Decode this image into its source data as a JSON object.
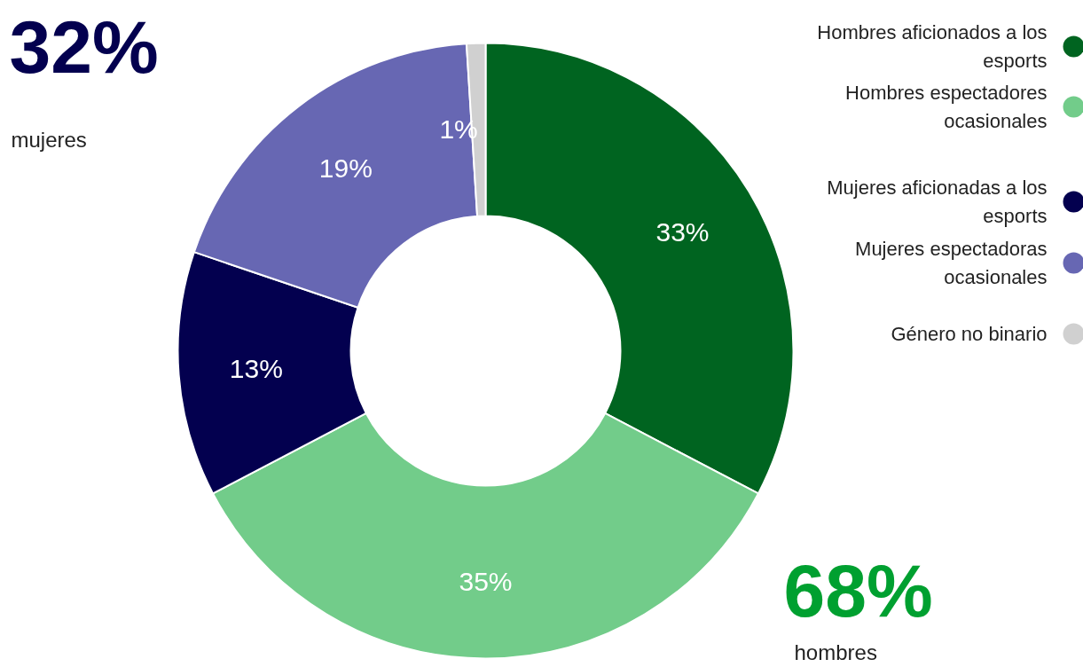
{
  "chart_data": {
    "type": "donut",
    "categories": [
      "Hombres aficionados a los esports",
      "Hombres espectadores ocasionales",
      "Mujeres aficionadas a los esports",
      "Mujeres espectadoras ocasionales",
      "Género no binario"
    ],
    "values": [
      33,
      35,
      13,
      19,
      1
    ],
    "colors": [
      "#006420",
      "#72cc8a",
      "#03004f",
      "#6767b3",
      "#d0d0d0"
    ],
    "value_labels": [
      "33%",
      "35%",
      "13%",
      "19%",
      "1%"
    ],
    "legend": "top right",
    "annotations": [
      "32%",
      "mujeres",
      "68%",
      "hombres"
    ]
  }
}
